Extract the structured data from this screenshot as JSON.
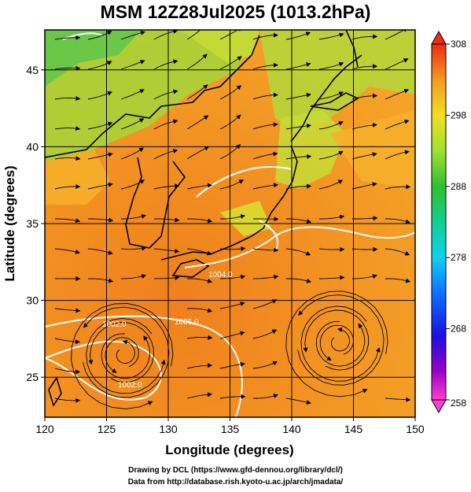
{
  "title": "MSM 12Z28Jul2025 (1013.2hPa)",
  "x_axis": {
    "label": "Longitude (degrees)",
    "range": [
      120,
      150
    ],
    "ticks": [
      120,
      125,
      130,
      135,
      140,
      145,
      150
    ],
    "tick_labels": [
      "120",
      "125",
      "130",
      "135",
      "140",
      "145",
      "150"
    ]
  },
  "y_axis": {
    "label": "Latitude  (degrees)",
    "range": [
      22.4,
      47.6
    ],
    "ticks": [
      25,
      30,
      35,
      40,
      45
    ],
    "tick_labels": [
      "25",
      "30",
      "35",
      "40",
      "45"
    ]
  },
  "colorbar": {
    "min": 258,
    "max": 308,
    "tick_labels": [
      "308",
      "298",
      "288",
      "278",
      "268",
      "258"
    ]
  },
  "isobar_labels": [
    "1004.0",
    "1002.0",
    "1002.0",
    "1006.0"
  ],
  "vortices": [
    {
      "lon": 143.8,
      "lat": 27.3
    },
    {
      "lon": 126.4,
      "lat": 26.5
    }
  ],
  "credit_line1": "Drawing by DCL (https://www.gfd-dennou.org/library/dcl/)",
  "credit_line2": "Data from http://database.rish.kyoto-u.ac.jp/arch/jmadata/",
  "colors": {
    "warm": "#f08a1e",
    "mid": "#f5b22a",
    "cool_land": "#8fcf3a",
    "cold": "#52c44a"
  }
}
